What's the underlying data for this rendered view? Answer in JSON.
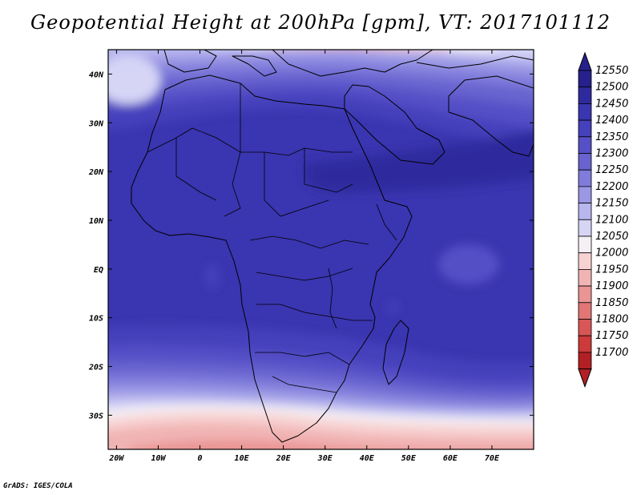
{
  "title": "Geopotential Height at 200hPa [gpm], VT: 2017101112",
  "credit": "GrADS: IGES/COLA",
  "map": {
    "lon_range": [
      -22,
      80
    ],
    "lat_range": [
      -37,
      45
    ],
    "lat_ticks": [
      "40N",
      "30N",
      "20N",
      "10N",
      "EQ",
      "10S",
      "20S",
      "30S"
    ],
    "lat_values": [
      40,
      30,
      20,
      10,
      0,
      -10,
      -20,
      -30
    ],
    "lon_ticks": [
      "20W",
      "10W",
      "0",
      "10E",
      "20E",
      "30E",
      "40E",
      "50E",
      "60E",
      "70E"
    ],
    "lon_values": [
      -20,
      -10,
      0,
      10,
      20,
      30,
      40,
      50,
      60,
      70
    ]
  },
  "colorbar": {
    "labels": [
      "12550",
      "12500",
      "12450",
      "12400",
      "12350",
      "12300",
      "12250",
      "12200",
      "12150",
      "12100",
      "12050",
      "12000",
      "11950",
      "11900",
      "11850",
      "11800",
      "11750",
      "11700"
    ],
    "colors": [
      "#26208c",
      "#2e2a9e",
      "#3a35b0",
      "#4540bb",
      "#5550c6",
      "#6863cf",
      "#7f7cdb",
      "#9a97e4",
      "#b8b6ee",
      "#d6d5f6",
      "#f5f0f4",
      "#f8d2d2",
      "#f1b4b4",
      "#ea9494",
      "#e27676",
      "#d85656",
      "#cc3a3a",
      "#b21f24"
    ]
  }
}
